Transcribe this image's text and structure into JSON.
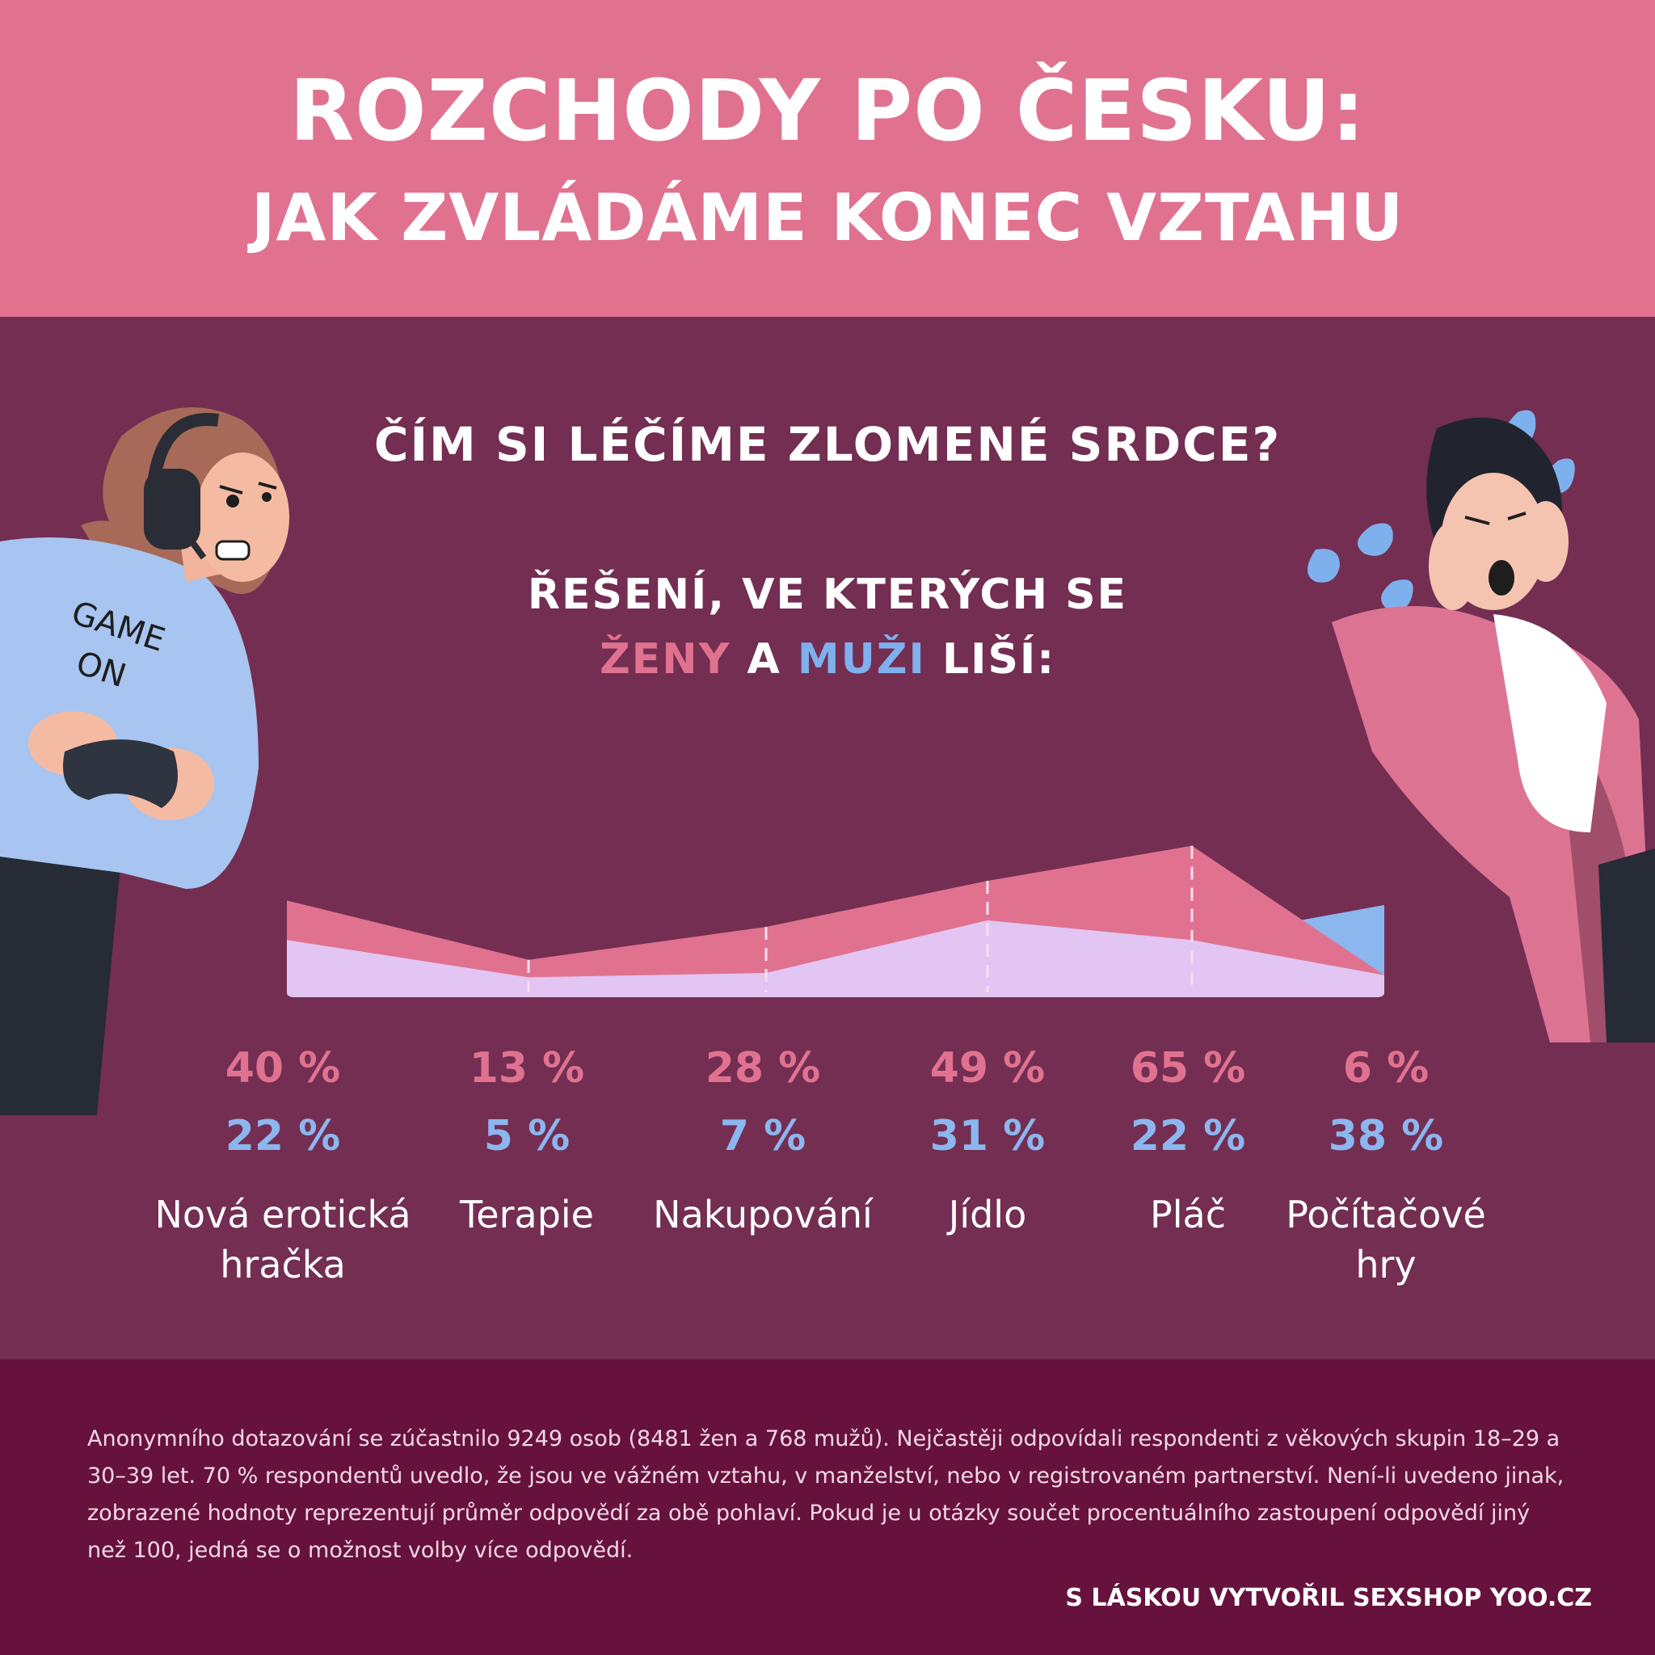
{
  "header": {
    "title_line1": "ROZCHODY PO ČESKU:",
    "title_line2": "JAK ZVLÁDÁME KONEC VZTAHU"
  },
  "question": "ČÍM SI LÉČÍME ZLOMENÉ SRDCE?",
  "subtitle": {
    "line1": "ŘEŠENÍ, VE KTERÝCH SE",
    "women": "ŽENY",
    "and": "A",
    "men": "MUŽI",
    "end": "LIŠÍ:"
  },
  "illustrations": {
    "left_shirt_text_1": "GAME",
    "left_shirt_text_2": "ON"
  },
  "colors": {
    "women": "#e07290",
    "men": "#8cb6ee",
    "men_area": "#e2c5f2",
    "background": "#732e52",
    "header": "#e07290",
    "footer": "#66123d"
  },
  "chart_data": {
    "type": "area",
    "categories": [
      "Nová erotická hračka",
      "Terapie",
      "Nakupování",
      "Jídlo",
      "Pláč",
      "Počítačové hry"
    ],
    "series": [
      {
        "name": "ŽENY",
        "values": [
          40,
          13,
          28,
          49,
          65,
          6
        ],
        "labels": [
          "40 %",
          "13 %",
          "28 %",
          "49 %",
          "65 %",
          "6 %"
        ]
      },
      {
        "name": "MUŽI",
        "values": [
          22,
          5,
          7,
          31,
          22,
          38
        ],
        "labels": [
          "22 %",
          "5 %",
          "7 %",
          "31 %",
          "22 %",
          "38 %"
        ]
      }
    ],
    "category_labels": [
      [
        "Nová erotická",
        "hračka"
      ],
      [
        "Terapie"
      ],
      [
        "Nakupování"
      ],
      [
        "Jídlo"
      ],
      [
        "Pláč"
      ],
      [
        "Počítačové",
        "hry"
      ]
    ],
    "ylim": [
      0,
      70
    ]
  },
  "footer": {
    "note": "Anonymního dotazování se zúčastnilo 9249 osob (8481 žen a 768 mužů). Nejčastěji odpovídali respondenti z věkových skupin 18–29 a 30–39 let. 70 % respondentů uvedlo, že jsou ve vážném vztahu, v manželství, nebo v registrovaném partnerství. Není-li uvedeno jinak, zobrazené hodnoty reprezentují průměr odpovědí za obě pohlaví. Pokud je u otázky součet procentuálního zastoupení odpovědí jiný než 100, jedná se o možnost volby více odpovědí.",
    "credit": "S LÁSKOU VYTVOŘIL SEXSHOP YOO.CZ"
  }
}
